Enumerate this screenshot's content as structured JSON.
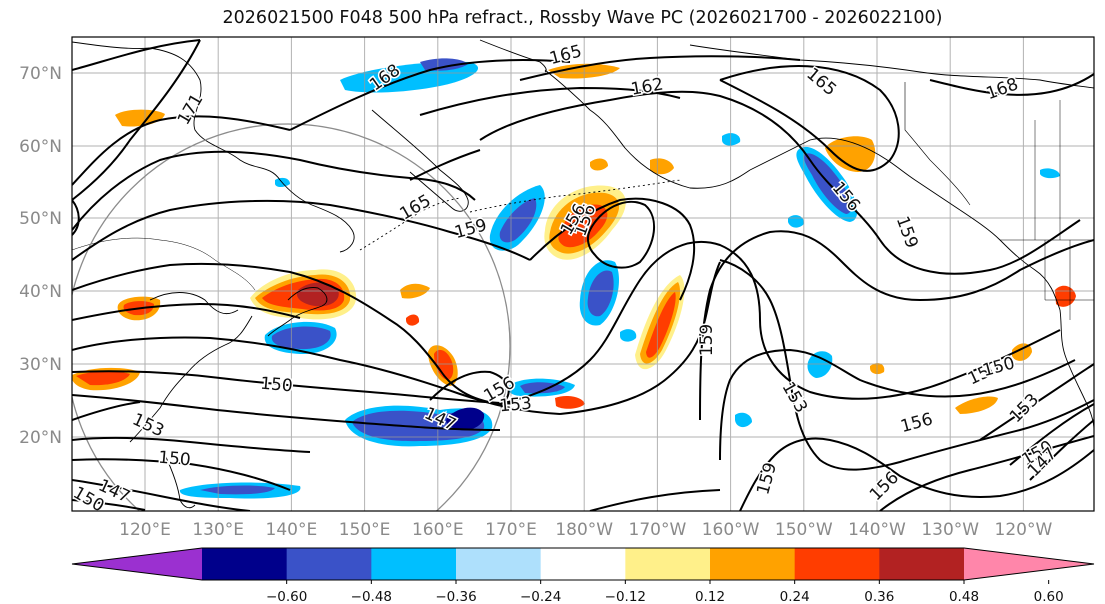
{
  "title": "2026021500 F048 500 hPa refract., Rossby Wave PC (2026021700 - 2026022100)",
  "latitude_ticks": [
    "70°N",
    "60°N",
    "50°N",
    "40°N",
    "30°N",
    "20°N"
  ],
  "longitude_ticks": [
    "120°E",
    "130°E",
    "140°E",
    "150°E",
    "160°E",
    "170°E",
    "180°W",
    "170°W",
    "160°W",
    "150°W",
    "140°W",
    "130°W",
    "120°W"
  ],
  "colorbar": {
    "colors": [
      "#9b30d0",
      "#00008b",
      "#3a52c8",
      "#00bfff",
      "#aee0fc",
      "#ffffff",
      "#fff08a",
      "#ffa200",
      "#ff3d00",
      "#b22222",
      "#ff86aa"
    ],
    "tick_labels": [
      "−0.60",
      "−0.48",
      "−0.36",
      "−0.24",
      "−0.12",
      "0.12",
      "0.24",
      "0.36",
      "0.48",
      "0.60"
    ],
    "extend": "both"
  },
  "contour_labels": [
    "171",
    "168",
    "165",
    "162",
    "165",
    "168",
    "165",
    "159",
    "156",
    "156",
    "159",
    "153",
    "150",
    "147",
    "153",
    "150",
    "147",
    "150",
    "156",
    "153",
    "150",
    "159",
    "156",
    "150",
    "156",
    "153",
    "150",
    "147",
    "156",
    "159"
  ],
  "map": {
    "grid": true,
    "projection": "cylindrical",
    "field_line_color": "#000000",
    "coast_line_color": "#000000",
    "circle_color": "#8c8c8c"
  }
}
